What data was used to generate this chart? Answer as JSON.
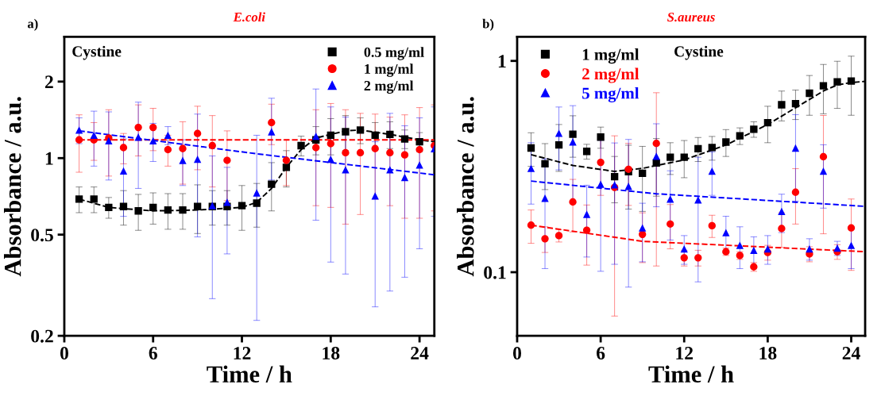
{
  "chart_data": [
    {
      "type": "scatter",
      "title": "E.coli",
      "xlabel": "Time / h",
      "ylabel": "Absorbance / a.u.",
      "annotations": [
        "a)",
        "Cystine"
      ],
      "log": "y",
      "xlim": [
        0,
        25
      ],
      "xticks": [
        0,
        6,
        12,
        18,
        24
      ],
      "ylim": [
        0.2,
        3
      ],
      "yticks": [
        0.2,
        0.5,
        1,
        2
      ],
      "grid": false,
      "legend": "top right",
      "x": [
        1,
        2,
        3,
        4,
        5,
        6,
        7,
        8,
        9,
        10,
        11,
        12,
        13,
        14,
        15,
        16,
        17,
        18,
        19,
        20,
        21,
        22,
        23,
        24,
        25
      ],
      "series": [
        {
          "name": "0.5 mg/ml",
          "color": "#000000",
          "marker": "square",
          "values": [
            0.69,
            0.69,
            0.64,
            0.645,
            0.62,
            0.64,
            0.625,
            0.625,
            0.645,
            0.645,
            0.645,
            0.65,
            0.665,
            0.79,
            0.92,
            1.12,
            1.18,
            1.23,
            1.27,
            1.29,
            1.23,
            1.24,
            1.19,
            1.16,
            null
          ],
          "errors": [
            0.08,
            0.08,
            0.06,
            0.1,
            0.1,
            0.09,
            0.1,
            0.1,
            0.14,
            0.1,
            0.1,
            0.13,
            0.13,
            0.17,
            0.15,
            0.1,
            0.15,
            0.2,
            0.2,
            0.15,
            0.15,
            0.15,
            0.1,
            0.1,
            null
          ]
        },
        {
          "name": "1 mg/ml",
          "color": "#ff0000",
          "marker": "circle",
          "values": [
            1.18,
            1.18,
            1.2,
            1.1,
            1.32,
            1.32,
            1.08,
            1.09,
            1.25,
            1.12,
            0.98,
            null,
            null,
            1.38,
            0.98,
            null,
            1.1,
            1.14,
            1.05,
            1.05,
            1.09,
            1.05,
            1.03,
            1.08,
            1.12
          ],
          "errors": [
            0.3,
            0.2,
            0.35,
            0.15,
            0.3,
            0.25,
            0.15,
            0.3,
            0.35,
            0.35,
            0.3,
            null,
            null,
            0.25,
            0.2,
            null,
            0.45,
            0.5,
            0.5,
            0.45,
            0.4,
            0.4,
            0.45,
            0.5,
            0.5
          ]
        },
        {
          "name": "2 mg/ml",
          "color": "#0000ff",
          "marker": "triangle",
          "values": [
            1.29,
            1.23,
            1.17,
            0.89,
            1.21,
            1.17,
            1.23,
            0.98,
            0.99,
            0.65,
            0.67,
            null,
            0.73,
            1.27,
            null,
            null,
            1.22,
            0.99,
            0.9,
            null,
            0.71,
            0.9,
            0.84,
            0.94,
            1.09
          ],
          "errors": [
            0.15,
            0.3,
            0.35,
            0.3,
            0.45,
            0.2,
            0.1,
            0.2,
            0.5,
            0.37,
            0.25,
            null,
            0.5,
            0.45,
            null,
            null,
            0.65,
            0.6,
            0.55,
            null,
            0.45,
            0.6,
            0.5,
            0.5,
            0.5
          ]
        },
        {
          "type": "line",
          "color": "#000000",
          "marker": "none",
          "line_style": "dashed",
          "x": [
            1,
            3,
            6,
            9,
            12,
            13,
            14,
            15,
            16,
            17,
            19,
            20,
            22,
            24,
            25
          ],
          "values": [
            0.69,
            0.64,
            0.62,
            0.625,
            0.64,
            0.67,
            0.76,
            0.92,
            1.08,
            1.2,
            1.28,
            1.29,
            1.24,
            1.18,
            1.16
          ]
        },
        {
          "type": "line",
          "color": "#ff0000",
          "marker": "none",
          "line_style": "dashed",
          "x": [
            1,
            25
          ],
          "values": [
            1.18,
            1.18
          ]
        },
        {
          "type": "line",
          "color": "#0000ff",
          "marker": "none",
          "line_style": "dashed",
          "x": [
            1,
            13,
            25
          ],
          "values": [
            1.28,
            1.04,
            0.86
          ]
        }
      ]
    },
    {
      "type": "scatter",
      "title": "S.aureus",
      "xlabel": "Time / h",
      "ylabel": "Absorbance / a.u.",
      "annotations": [
        "b)",
        "Cystine"
      ],
      "log": "y",
      "xlim": [
        0,
        25
      ],
      "xticks": [
        0,
        6,
        12,
        18,
        24
      ],
      "ylim": [
        0.05,
        1.3
      ],
      "yticks": [
        0.1,
        1
      ],
      "grid": false,
      "legend": "top left",
      "x": [
        1,
        2,
        3,
        4,
        5,
        6,
        7,
        8,
        9,
        10,
        11,
        12,
        13,
        14,
        15,
        16,
        17,
        18,
        19,
        20,
        21,
        22,
        23,
        24
      ],
      "series": [
        {
          "name": "1 mg/ml",
          "color": "#000000",
          "marker": "square",
          "values": [
            0.387,
            0.326,
            0.4,
            0.45,
            0.373,
            0.436,
            0.283,
            0.299,
            0.294,
            0.329,
            0.35,
            0.35,
            0.384,
            0.389,
            0.413,
            0.442,
            0.475,
            0.51,
            0.62,
            0.628,
            0.703,
            0.762,
            0.796,
            0.803
          ],
          "errors": [
            0.07,
            0.08,
            0.1,
            0.1,
            0.03,
            0.05,
            0.07,
            0.1,
            0.1,
            0.1,
            0.06,
            0.07,
            0.05,
            0.05,
            0.06,
            0.04,
            0.04,
            0.1,
            0.1,
            0.1,
            0.15,
            0.2,
            0.2,
            0.25
          ]
        },
        {
          "name": "2 mg/ml",
          "color": "#ff0000",
          "marker": "circle",
          "values": [
            0.167,
            0.144,
            0.149,
            0.215,
            0.158,
            0.331,
            0.252,
            0.307,
            0.151,
            0.407,
            0.169,
            0.117,
            0.117,
            0.166,
            0.125,
            0.12,
            0.106,
            0.124,
            0.161,
            0.239,
            0.122,
            0.352,
            0.125,
            0.162
          ],
          "errors": [
            0.03,
            0.02,
            0.01,
            0.06,
            0.05,
            0.1,
            0.19,
            0.1,
            0.04,
            0.3,
            0.04,
            0.01,
            0.01,
            0.02,
            0.005,
            0.005,
            0.005,
            0.01,
            0.03,
            0.07,
            0.01,
            0.2,
            0.01,
            0.06
          ]
        },
        {
          "name": "5 mg/ml",
          "color": "#0000ff",
          "marker": "triangle",
          "values": [
            0.31,
            0.224,
            0.455,
            0.414,
            0.188,
            0.261,
            0.259,
            0.255,
            0.162,
            0.354,
            0.222,
            0.129,
            0.22,
            0.301,
            0.154,
            0.134,
            0.127,
            0.129,
            0.194,
            0.387,
            0.129,
            0.301,
            0.13,
            0.134
          ],
          "errors": [
            0.1,
            0.12,
            0.15,
            0.2,
            0.07,
            0.16,
            0.15,
            0.17,
            0.05,
            0.15,
            0.08,
            0.02,
            0.13,
            0.07,
            0.03,
            0.03,
            0.02,
            0.02,
            0.04,
            0.17,
            0.015,
            0.1,
            0.01,
            0.03
          ]
        },
        {
          "type": "line",
          "color": "#000000",
          "marker": "none",
          "line_style": "dashed",
          "x": [
            1,
            4,
            7,
            9,
            12,
            15,
            18,
            20,
            22,
            23,
            24,
            25
          ],
          "values": [
            0.36,
            0.32,
            0.3,
            0.31,
            0.34,
            0.4,
            0.5,
            0.6,
            0.72,
            0.77,
            0.79,
            0.8
          ]
        },
        {
          "type": "line",
          "color": "#ff0000",
          "marker": "none",
          "line_style": "dashed",
          "x": [
            1,
            9,
            25
          ],
          "values": [
            0.167,
            0.14,
            0.125
          ]
        },
        {
          "type": "line",
          "color": "#0000ff",
          "marker": "none",
          "line_style": "dashed",
          "x": [
            1,
            10,
            25
          ],
          "values": [
            0.27,
            0.235,
            0.205
          ]
        }
      ]
    }
  ]
}
